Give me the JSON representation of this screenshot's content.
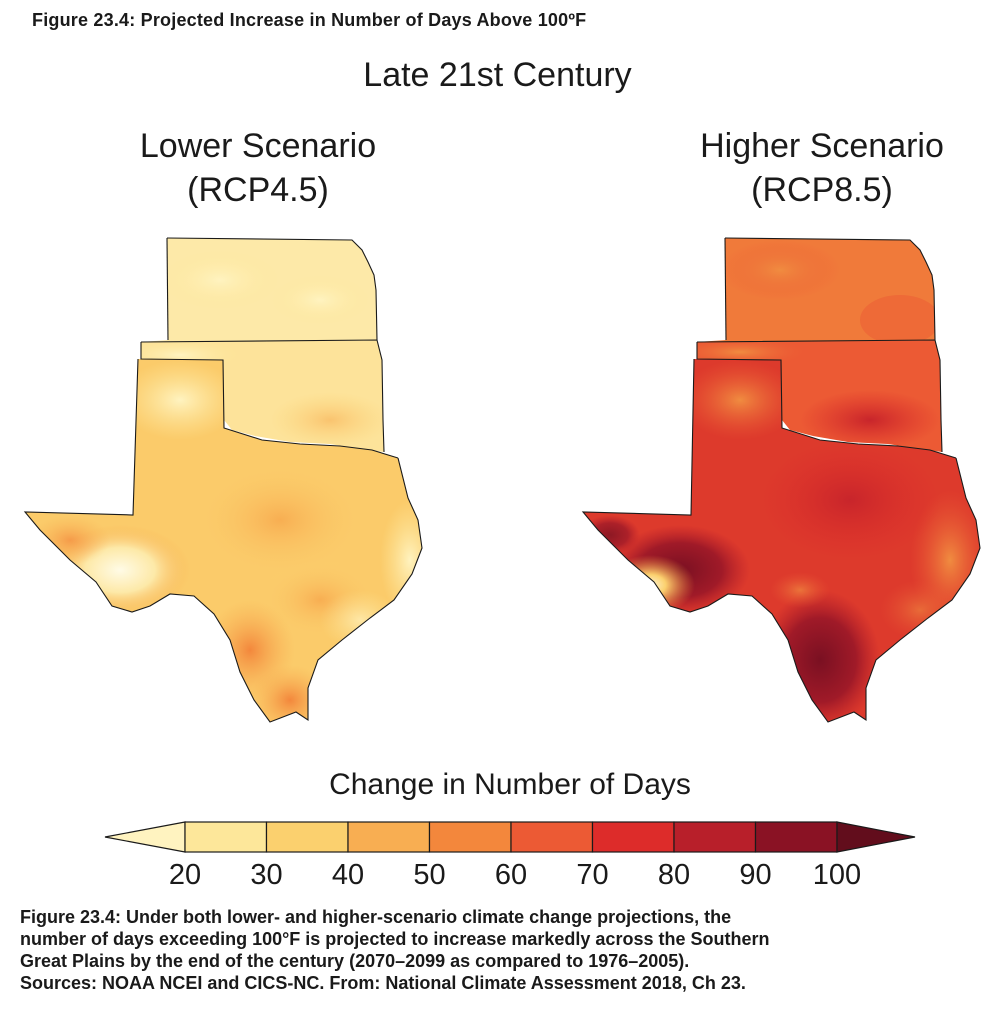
{
  "figure_title": "Figure 23.4: Projected Increase in Number of Days Above 100ºF",
  "period": "Late 21st Century",
  "scenarios": [
    {
      "line1": "Lower Scenario",
      "line2": "(RCP4.5)"
    },
    {
      "line1": "Higher Scenario",
      "line2": "(RCP8.5)"
    }
  ],
  "legend": {
    "title": "Change in Number of Days",
    "ticks": [
      "20",
      "30",
      "40",
      "50",
      "60",
      "70",
      "80",
      "90",
      "100"
    ],
    "colors": [
      "#fff3c0",
      "#fde79a",
      "#fbd06e",
      "#f8ae52",
      "#f3873c",
      "#ec5a34",
      "#dd2c2a",
      "#b81f2a",
      "#8a1224",
      "#620d1c"
    ]
  },
  "caption": [
    "Figure 23.4: Under both lower- and higher-scenario climate change projections, the",
    "number of days exceeding 100°F is projected to increase markedly across the Southern",
    "Great Plains by the end of the century (2070–2099 as compared to 1976–2005).",
    "Sources: NOAA NCEI and CICS-NC. From: National Climate Assessment 2018, Ch 23."
  ]
}
